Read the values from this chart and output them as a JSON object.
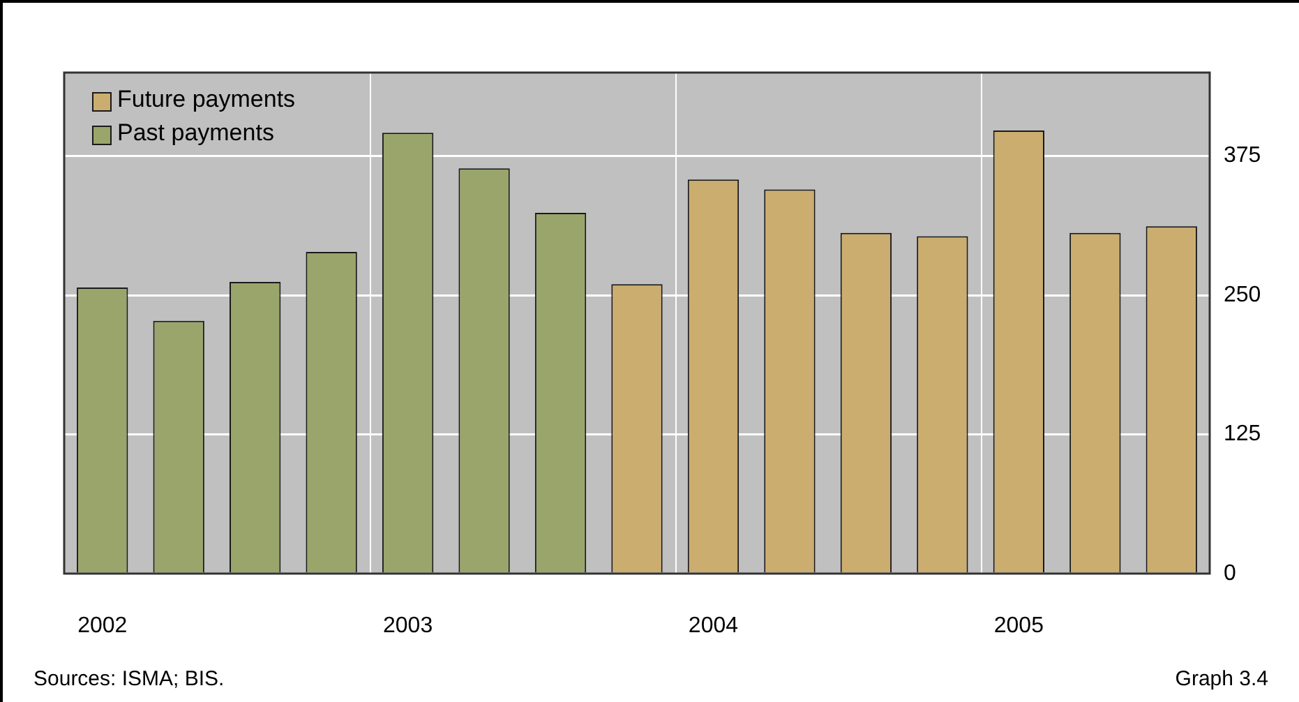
{
  "chart_data": {
    "type": "bar",
    "categories": [
      "2002",
      null,
      null,
      null,
      "2003",
      null,
      null,
      null,
      "2004",
      null,
      null,
      null,
      "2005",
      null,
      null
    ],
    "series": [
      {
        "name": "Future payments",
        "color": "#cbad70",
        "values": [
          null,
          null,
          null,
          null,
          null,
          null,
          null,
          260,
          354,
          345,
          306,
          303,
          398,
          306,
          312
        ]
      },
      {
        "name": "Past payments",
        "color": "#9aa56b",
        "values": [
          257,
          227,
          262,
          289,
          396,
          364,
          324,
          null,
          null,
          null,
          null,
          null,
          null,
          null,
          null
        ]
      }
    ],
    "ylim": [
      0,
      450
    ],
    "yticks": [
      0,
      125,
      250,
      375
    ],
    "grid": true,
    "legend": "top left",
    "annotations": [
      "Sources: ISMA; BIS.",
      "Graph 3.4"
    ]
  }
}
